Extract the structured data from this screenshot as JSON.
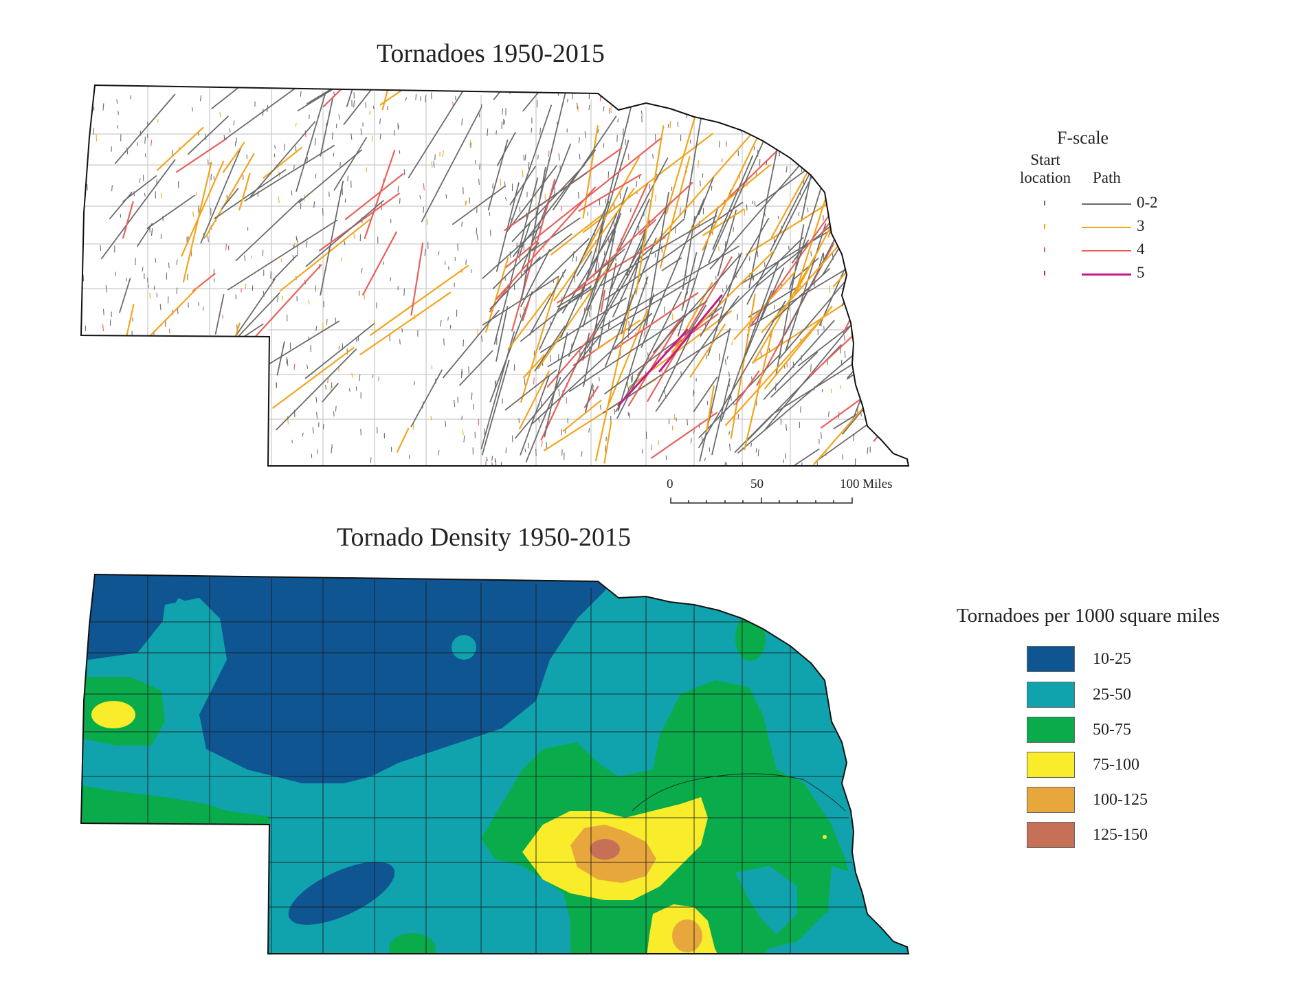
{
  "maps": {
    "tracks_title": "Tornadoes 1950-2015",
    "density_title": "Tornado Density 1950-2015"
  },
  "tracks_legend": {
    "title": "F-scale",
    "start_label": "Start location",
    "start_line1": "Start",
    "start_line2": "location",
    "path_label": "Path",
    "classes": [
      {
        "label": "0-2",
        "color": "#6b6b6b"
      },
      {
        "label": "3",
        "color": "#f2a51c"
      },
      {
        "label": "4",
        "color": "#e8605a"
      },
      {
        "label": "5",
        "color": "#c41a8a"
      }
    ]
  },
  "scale_bar": {
    "ticks": [
      "0",
      "50",
      "100 Miles"
    ]
  },
  "density_legend": {
    "title": "Tornadoes per 1000 square miles",
    "classes": [
      {
        "label": "10-25",
        "color": "#0f5591"
      },
      {
        "label": "25-50",
        "color": "#10a3ad"
      },
      {
        "label": "50-75",
        "color": "#0aab4a"
      },
      {
        "label": "75-100",
        "color": "#f8ec2b"
      },
      {
        "label": "100-125",
        "color": "#e8a73c"
      },
      {
        "label": "125-150",
        "color": "#c77058"
      }
    ]
  }
}
